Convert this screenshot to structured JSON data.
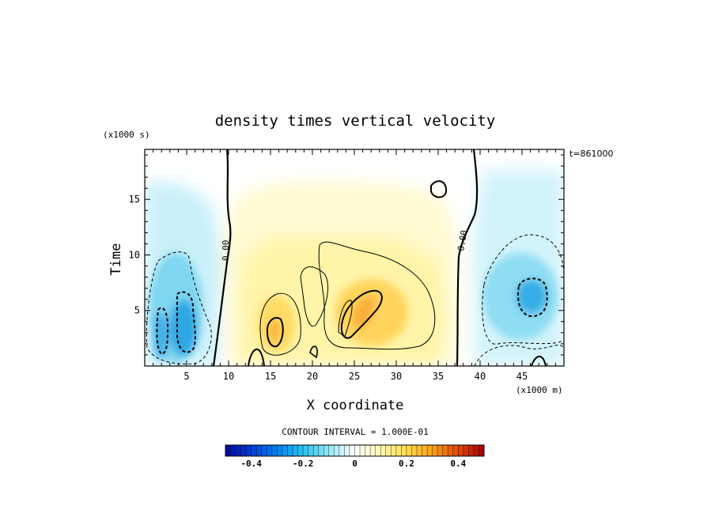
{
  "chart_data": {
    "type": "heatmap",
    "title": "density times vertical velocity",
    "xlabel": "X coordinate",
    "ylabel": "Time",
    "x_units": "(x1000 m)",
    "y_units": "(x1000 s)",
    "time_stamp": "t=861000",
    "xlim": [
      0,
      50
    ],
    "ylim": [
      0,
      19.5
    ],
    "x_ticks": [
      "5",
      "10",
      "15",
      "20",
      "25",
      "30",
      "35",
      "40",
      "45"
    ],
    "y_ticks": [
      "5",
      "10",
      "15"
    ],
    "contour_label": "0.00",
    "contour_interval_text": "CONTOUR INTERVAL = 1.000E-01",
    "colorbar": {
      "min": -0.5,
      "max": 0.5,
      "steps": 50,
      "ticks": [
        "-0.4",
        "-0.2",
        "0",
        "0.2",
        "0.4"
      ]
    },
    "features": [
      {
        "kind": "negative",
        "x": 4.5,
        "y": 3.5,
        "peak": -0.35
      },
      {
        "kind": "negative",
        "x": 2.5,
        "y": 2.5,
        "peak": -0.3
      },
      {
        "kind": "negative",
        "x": 46,
        "y": 6.5,
        "peak": -0.3
      },
      {
        "kind": "positive",
        "x": 15.5,
        "y": 3.5,
        "peak": 0.25
      },
      {
        "kind": "positive",
        "x": 25.5,
        "y": 5,
        "peak": 0.25
      }
    ]
  }
}
